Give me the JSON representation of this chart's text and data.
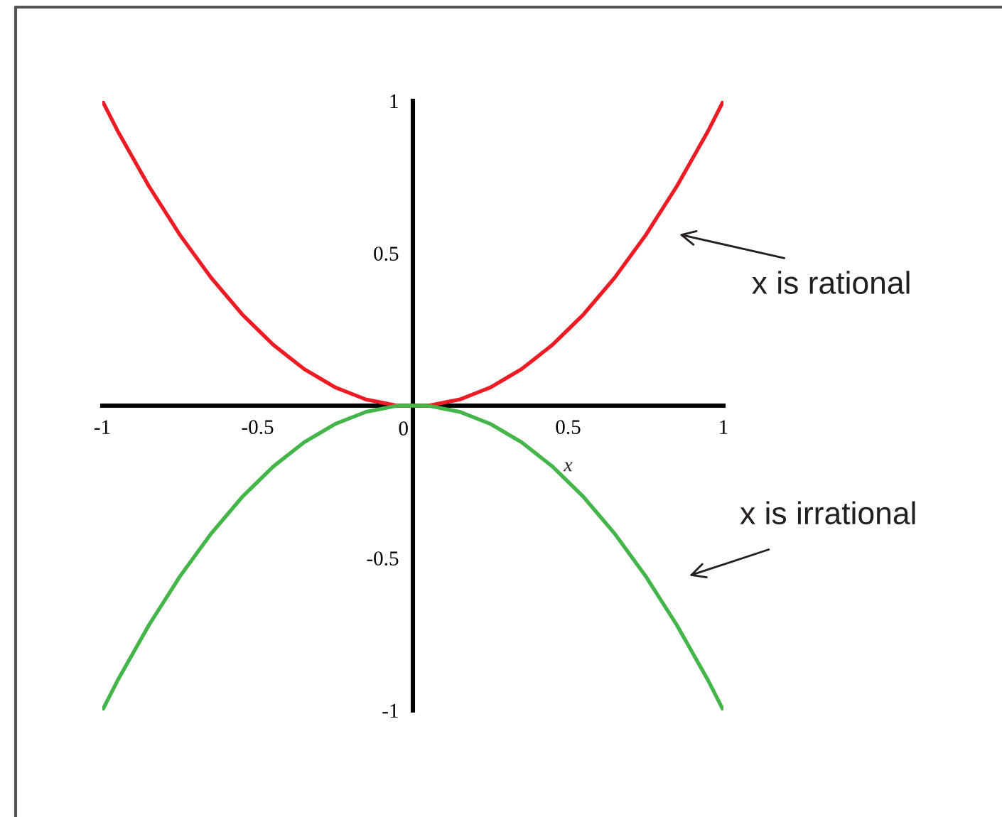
{
  "chart_data": {
    "type": "line",
    "x": [
      -1,
      -0.95,
      -0.9,
      -0.85,
      -0.8,
      -0.75,
      -0.7,
      -0.65,
      -0.6,
      -0.55,
      -0.5,
      -0.45,
      -0.4,
      -0.35,
      -0.3,
      -0.25,
      -0.2,
      -0.15,
      -0.1,
      -0.05,
      0,
      0.05,
      0.1,
      0.15,
      0.2,
      0.25,
      0.3,
      0.35,
      0.4,
      0.45,
      0.5,
      0.55,
      0.6,
      0.65,
      0.7,
      0.75,
      0.8,
      0.85,
      0.9,
      0.95,
      1
    ],
    "series": [
      {
        "name": "x is rational",
        "color": "#ed1c24",
        "values": [
          1,
          0.9,
          0.81,
          0.72,
          0.64,
          0.56,
          0.49,
          0.42,
          0.36,
          0.3,
          0.25,
          0.2,
          0.16,
          0.12,
          0.09,
          0.06,
          0.04,
          0.02,
          0.01,
          0,
          0,
          0,
          0.01,
          0.02,
          0.04,
          0.06,
          0.09,
          0.12,
          0.16,
          0.2,
          0.25,
          0.3,
          0.36,
          0.42,
          0.49,
          0.56,
          0.64,
          0.72,
          0.81,
          0.9,
          1
        ]
      },
      {
        "name": "x is irrational",
        "color": "#44b649",
        "values": [
          -1,
          -0.9,
          -0.81,
          -0.72,
          -0.64,
          -0.56,
          -0.49,
          -0.42,
          -0.36,
          -0.3,
          -0.25,
          -0.2,
          -0.16,
          -0.12,
          -0.09,
          -0.06,
          -0.04,
          -0.02,
          -0.01,
          0,
          0,
          0,
          -0.01,
          -0.02,
          -0.04,
          -0.06,
          -0.09,
          -0.12,
          -0.16,
          -0.2,
          -0.25,
          -0.3,
          -0.36,
          -0.42,
          -0.49,
          -0.56,
          -0.64,
          -0.72,
          -0.81,
          -0.9,
          -1
        ]
      }
    ],
    "xlabel": "x",
    "xlim": [
      -1,
      1
    ],
    "ylim": [
      -1,
      1
    ],
    "xticks": [
      -1,
      -0.5,
      0,
      0.5,
      1
    ],
    "yticks": [
      -1,
      -0.5,
      0.5,
      1
    ],
    "grid": false,
    "legend": false,
    "marker": "none",
    "line_style": "solid"
  }
}
